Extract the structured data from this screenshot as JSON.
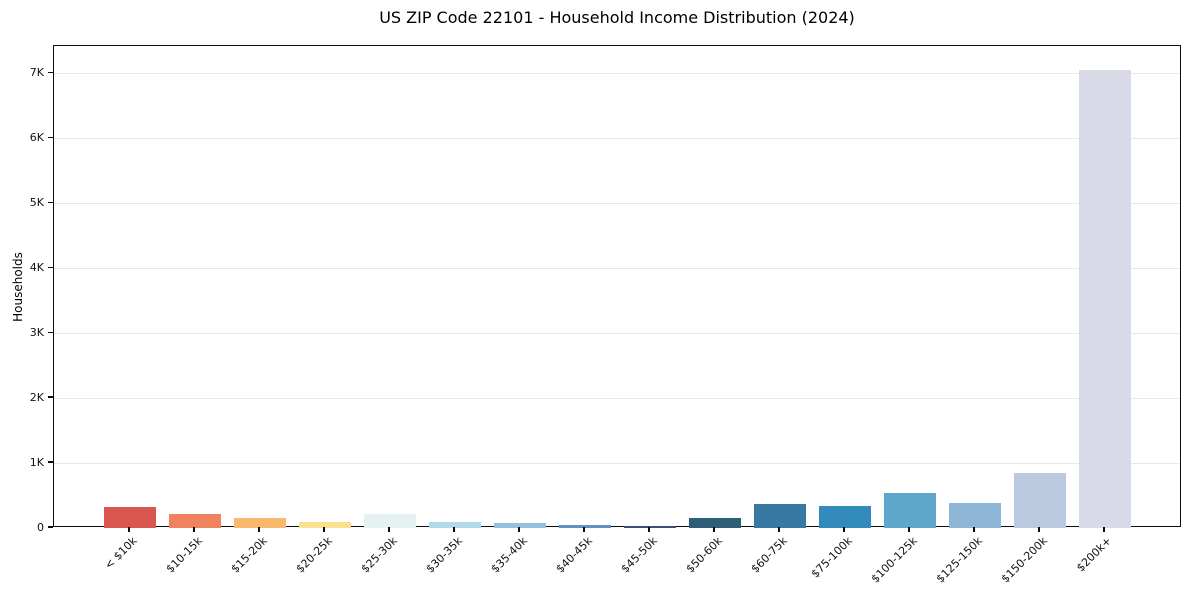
{
  "chart_data": {
    "type": "bar",
    "title": "US ZIP Code 22101 - Household Income Distribution (2024)",
    "xlabel": "",
    "ylabel": "Households",
    "categories": [
      "< $10k",
      "$10-15k",
      "$15-20k",
      "$20-25k",
      "$25-30k",
      "$30-35k",
      "$35-40k",
      "$40-45k",
      "$45-50k",
      "$50-60k",
      "$60-75k",
      "$75-100k",
      "$100-125k",
      "$125-150k",
      "$150-200k",
      "$200k+"
    ],
    "values": [
      320,
      220,
      150,
      85,
      210,
      90,
      70,
      50,
      30,
      155,
      375,
      340,
      540,
      385,
      850,
      7050
    ],
    "bar_colors": [
      "#d9574f",
      "#f0835f",
      "#f8b96c",
      "#fbe18f",
      "#e6f1f2",
      "#b0dbe6",
      "#94c2dd",
      "#6291c1",
      "#404c78",
      "#2f5e78",
      "#3779a3",
      "#338abd",
      "#5fa6cb",
      "#8fb5d7",
      "#b8c9e0",
      "#d8dae8"
    ],
    "ytick_labels": [
      "0",
      "1K",
      "2K",
      "3K",
      "4K",
      "5K",
      "6K",
      "7K"
    ],
    "ytick_values": [
      0,
      1000,
      2000,
      3000,
      4000,
      5000,
      6000,
      7000
    ],
    "ylim": [
      0,
      7420
    ],
    "grid": "horizontal",
    "gridline_color": "#e8e8e8",
    "legend": "none",
    "x_label_rotation_deg": 45
  }
}
